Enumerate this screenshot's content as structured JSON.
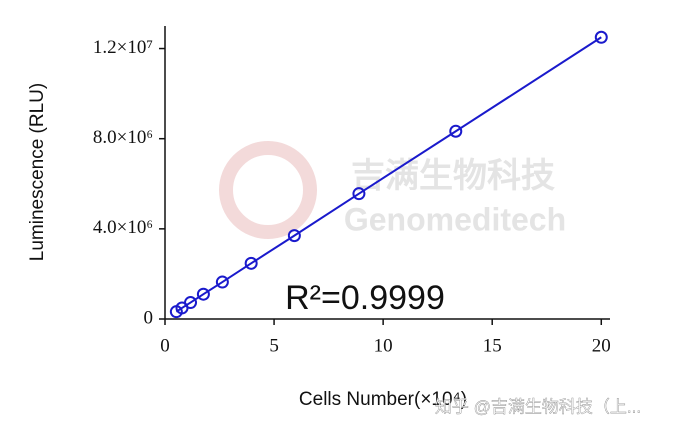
{
  "chart_data": {
    "type": "scatter-line",
    "x_label": "Cells Number(×10⁴)",
    "y_label": "Luminescence (RLU)",
    "annotation": "R²=0.9999",
    "watermarks": [
      "吉满生物科技",
      "Genomeditech",
      "知乎 @吉满生物科技（上..."
    ],
    "x": [
      0.52,
      0.78,
      1.17,
      1.76,
      2.63,
      3.95,
      5.93,
      8.89,
      13.33,
      20
    ],
    "series": [
      {
        "color": "#1a1acc",
        "values": [
          325000,
          490000,
          730000,
          1100000,
          1640000,
          2470000,
          3700000,
          5560000,
          8330000,
          12500000
        ]
      }
    ],
    "xlim": [
      0,
      20.4
    ],
    "xticks": [
      0,
      5,
      10,
      15,
      20
    ],
    "ylim": [
      0,
      13000000
    ],
    "yticks": [
      0,
      {
        "value": 4000000,
        "label": "4.0×10⁶"
      },
      {
        "value": 8000000,
        "label": "8.0×10⁶"
      },
      {
        "value": 12000000,
        "label": "1.2×10⁷"
      }
    ]
  }
}
